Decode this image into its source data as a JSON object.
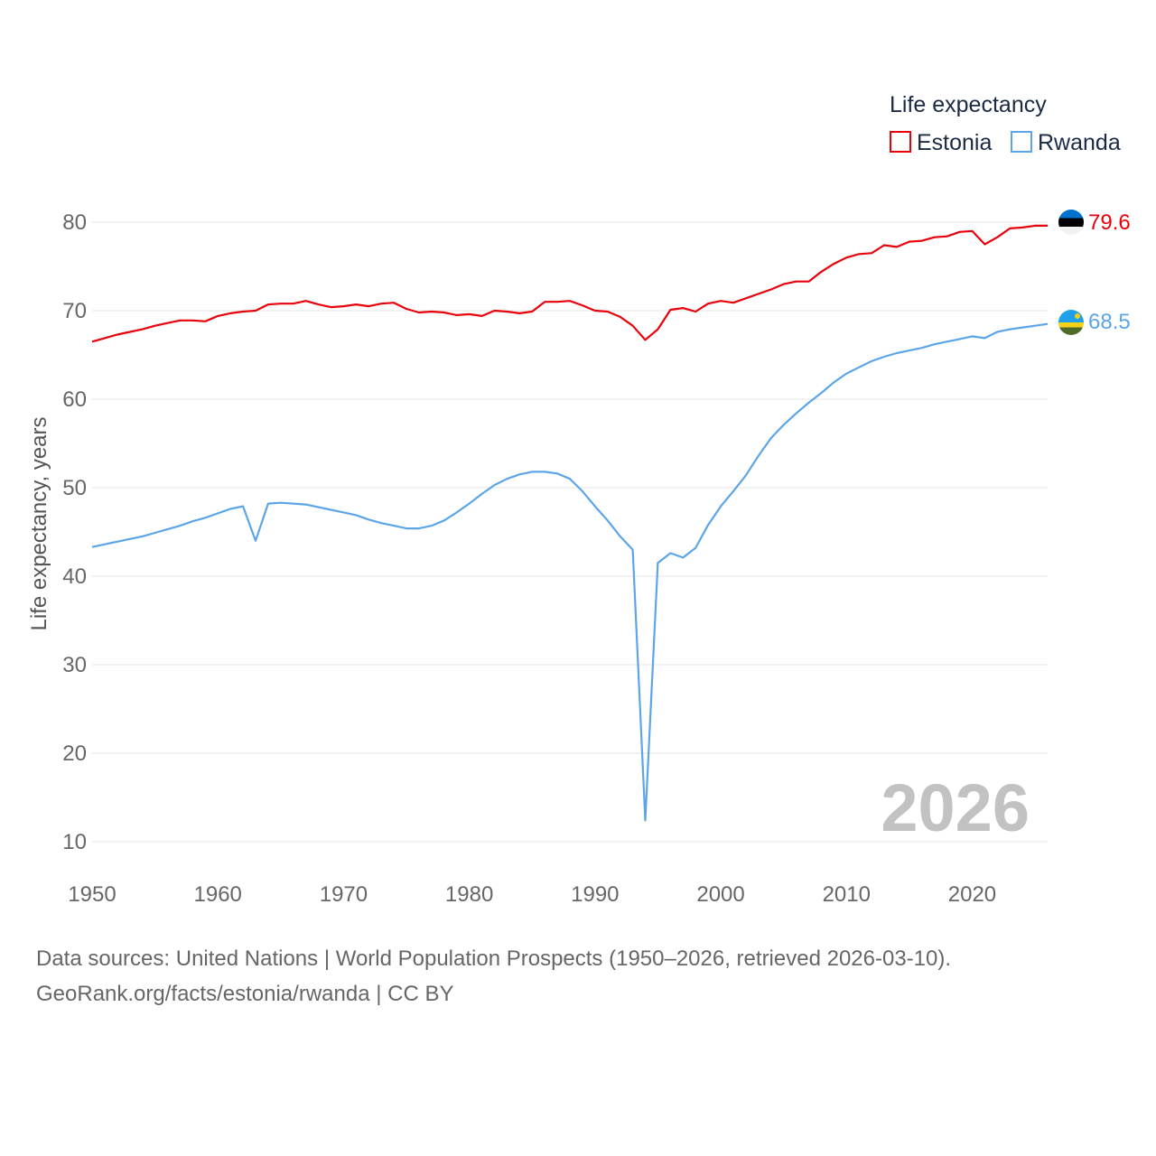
{
  "legend": {
    "title": "Life expectancy",
    "items": [
      {
        "name": "Estonia",
        "color": "#e8000b"
      },
      {
        "name": "Rwanda",
        "color": "#5ba5e8"
      }
    ]
  },
  "watermark_year": "2026",
  "source_line1": "Data sources: United Nations | World Population Prospects (1950–2026, retrieved 2026-03-10).",
  "source_line2": "GeoRank.org/facts/estonia/rwanda | CC BY",
  "chart_data": {
    "type": "line",
    "title": "Life expectancy",
    "xlabel": "",
    "ylabel": "Life expectancy, years",
    "xlim": [
      1950,
      2026
    ],
    "ylim": [
      5,
      83
    ],
    "x_ticks": [
      1950,
      1960,
      1970,
      1980,
      1990,
      2000,
      2010,
      2020
    ],
    "y_ticks": [
      10,
      20,
      30,
      40,
      50,
      60,
      70,
      80
    ],
    "grid": true,
    "legend_position": "top-right",
    "x": [
      1950,
      1951,
      1952,
      1953,
      1954,
      1955,
      1956,
      1957,
      1958,
      1959,
      1960,
      1961,
      1962,
      1963,
      1964,
      1965,
      1966,
      1967,
      1968,
      1969,
      1970,
      1971,
      1972,
      1973,
      1974,
      1975,
      1976,
      1977,
      1978,
      1979,
      1980,
      1981,
      1982,
      1983,
      1984,
      1985,
      1986,
      1987,
      1988,
      1989,
      1990,
      1991,
      1992,
      1993,
      1994,
      1995,
      1996,
      1997,
      1998,
      1999,
      2000,
      2001,
      2002,
      2003,
      2004,
      2005,
      2006,
      2007,
      2008,
      2009,
      2010,
      2011,
      2012,
      2013,
      2014,
      2015,
      2016,
      2017,
      2018,
      2019,
      2020,
      2021,
      2022,
      2023,
      2024,
      2025,
      2026
    ],
    "series": [
      {
        "name": "Estonia",
        "color": "#e8000b",
        "end_label": "79.6",
        "values": [
          66.5,
          66.9,
          67.3,
          67.6,
          67.9,
          68.3,
          68.6,
          68.9,
          68.9,
          68.8,
          69.4,
          69.7,
          69.9,
          70.0,
          70.7,
          70.8,
          70.8,
          71.1,
          70.7,
          70.4,
          70.5,
          70.7,
          70.5,
          70.8,
          70.9,
          70.2,
          69.8,
          69.9,
          69.8,
          69.5,
          69.6,
          69.4,
          70.0,
          69.9,
          69.7,
          69.9,
          71.0,
          71.0,
          71.1,
          70.6,
          70.0,
          69.9,
          69.3,
          68.3,
          66.7,
          67.9,
          70.1,
          70.3,
          69.9,
          70.8,
          71.1,
          70.9,
          71.4,
          71.9,
          72.4,
          73.0,
          73.3,
          73.3,
          74.4,
          75.3,
          76.0,
          76.4,
          76.5,
          77.4,
          77.2,
          77.8,
          77.9,
          78.3,
          78.4,
          78.9,
          79.0,
          77.5,
          78.3,
          79.3,
          79.4,
          79.6,
          79.6
        ]
      },
      {
        "name": "Rwanda",
        "color": "#5ba5e8",
        "end_label": "68.5",
        "values": [
          43.3,
          43.6,
          43.9,
          44.2,
          44.5,
          44.9,
          45.3,
          45.7,
          46.2,
          46.6,
          47.1,
          47.6,
          47.9,
          44.0,
          48.2,
          48.3,
          48.2,
          48.1,
          47.8,
          47.5,
          47.2,
          46.9,
          46.4,
          46.0,
          45.7,
          45.4,
          45.4,
          45.7,
          46.3,
          47.2,
          48.2,
          49.3,
          50.3,
          51.0,
          51.5,
          51.8,
          51.8,
          51.6,
          51.0,
          49.6,
          47.9,
          46.3,
          44.5,
          43.0,
          12.4,
          41.5,
          42.6,
          42.1,
          43.2,
          45.8,
          47.9,
          49.6,
          51.4,
          53.6,
          55.6,
          57.1,
          58.4,
          59.6,
          60.7,
          61.9,
          62.9,
          63.6,
          64.3,
          64.8,
          65.2,
          65.5,
          65.8,
          66.2,
          66.5,
          66.8,
          67.1,
          66.9,
          67.6,
          67.9,
          68.1,
          68.3,
          68.5
        ]
      }
    ]
  }
}
